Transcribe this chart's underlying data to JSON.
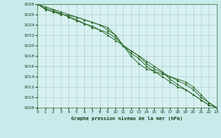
{
  "title": "Graphe pression niveau de la mer (hPa)",
  "background_color": "#c8eaea",
  "plot_bg_color": "#d8f0f0",
  "grid_color": "#a0c8c8",
  "line_color": "#2d6a2d",
  "marker_color": "#2d6a2d",
  "xlim": [
    0,
    23
  ],
  "ylim": [
    1008,
    1028
  ],
  "xticks": [
    0,
    1,
    2,
    3,
    4,
    5,
    6,
    7,
    8,
    9,
    10,
    11,
    12,
    13,
    14,
    15,
    16,
    17,
    18,
    19,
    20,
    21,
    22,
    23
  ],
  "yticks": [
    1008,
    1010,
    1012,
    1014,
    1016,
    1018,
    1020,
    1022,
    1024,
    1026,
    1028
  ],
  "series": [
    [
      1028,
      1027,
      1026.5,
      1026,
      1025.8,
      1025.5,
      1025,
      1024.5,
      1024,
      1023.5,
      1022,
      1020,
      1018,
      1016.5,
      1015.5,
      1015,
      1014.5,
      1014,
      1013.5,
      1013,
      1012,
      1010.5,
      1009,
      1008
    ],
    [
      1028,
      1027,
      1026.5,
      1026.2,
      1025.5,
      1024.8,
      1024.2,
      1023.8,
      1023,
      1022.5,
      1021.5,
      1020,
      1018.5,
      1017.5,
      1016,
      1015,
      1014,
      1013,
      1012,
      1011.5,
      1010.5,
      1009.5,
      1008.5,
      1008
    ],
    [
      1028,
      1027.2,
      1026.8,
      1026.2,
      1025.6,
      1025,
      1024.3,
      1023.5,
      1023,
      1022,
      1021,
      1020,
      1019,
      1018,
      1016.5,
      1015.5,
      1014.8,
      1014,
      1013.2,
      1012.5,
      1011.5,
      1010,
      1009,
      1008
    ],
    [
      1028,
      1027.5,
      1027,
      1026.5,
      1026,
      1025.5,
      1025,
      1024.5,
      1024,
      1023,
      1022,
      1020,
      1019,
      1018,
      1017,
      1016,
      1015,
      1013.5,
      1012.5,
      1011.5,
      1010.5,
      1009.5,
      1008.5,
      1008
    ]
  ]
}
